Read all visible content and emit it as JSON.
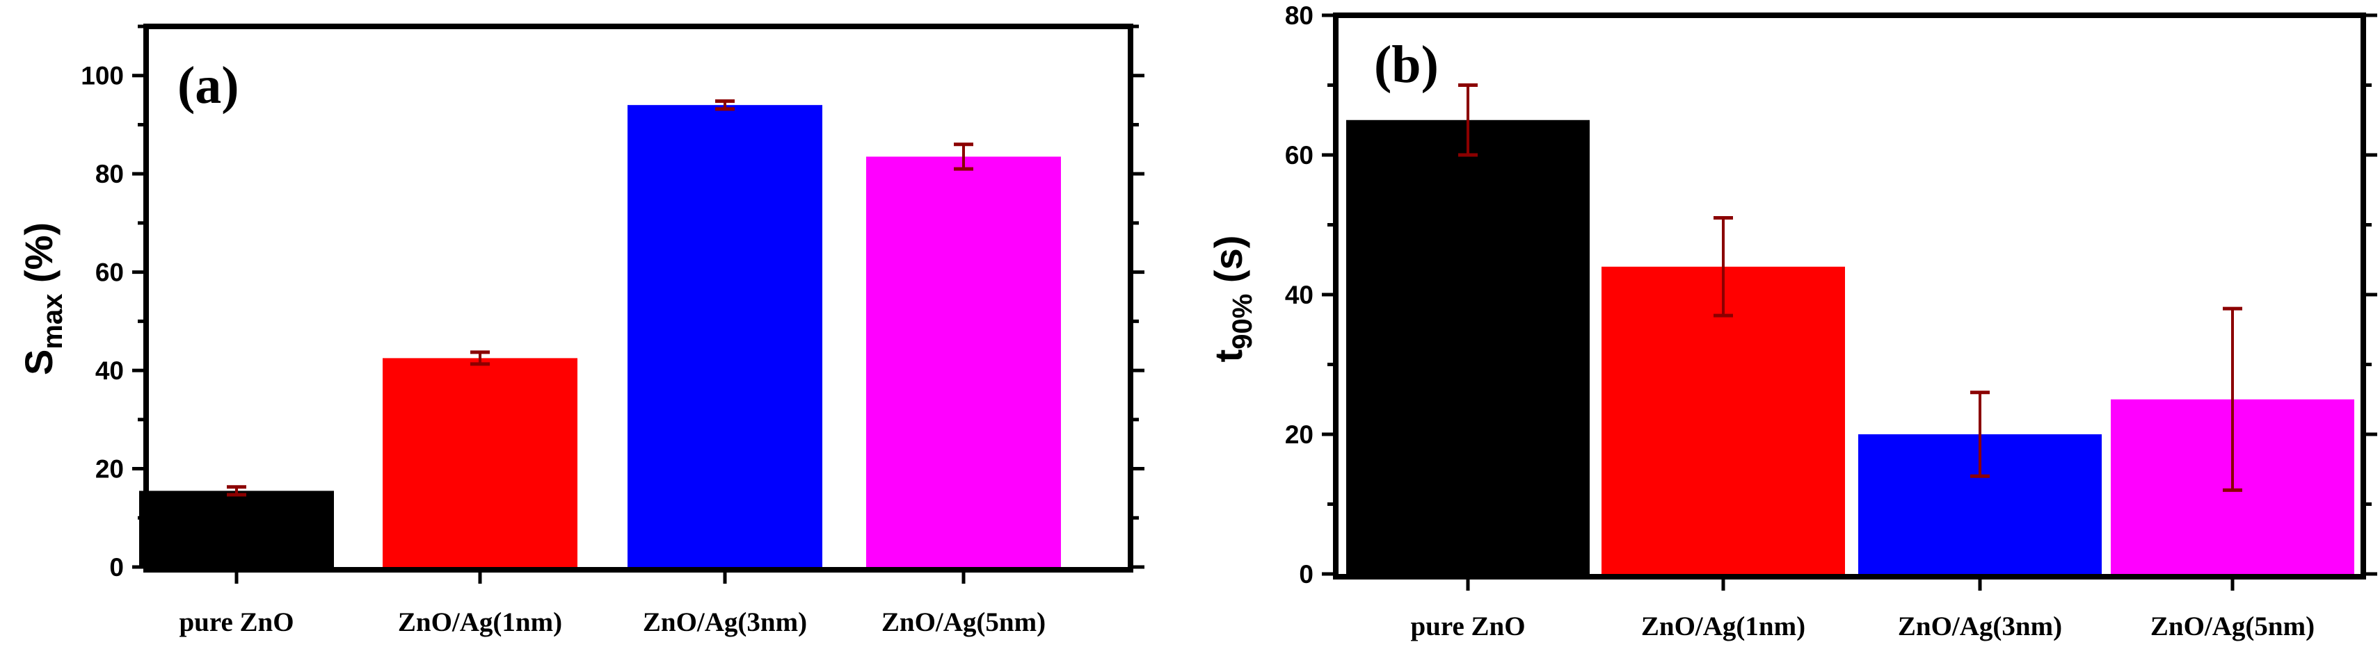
{
  "error_bar_color": "#8b0000",
  "chart_data": [
    {
      "type": "bar",
      "panel_label": "(a)",
      "ylabel_main": "S",
      "ylabel_sub": "max",
      "ylabel_suffix": " (%)",
      "categories": [
        "pure ZnO",
        "ZnO/Ag(1nm)",
        "ZnO/Ag(3nm)",
        "ZnO/Ag(5nm)"
      ],
      "values": [
        15.5,
        42.5,
        94,
        83.5
      ],
      "errors": [
        0.8,
        1.2,
        0.8,
        2.5
      ],
      "colors": [
        "#000000",
        "#ff0000",
        "#0000ff",
        "#ff00ff"
      ],
      "ylim": [
        0,
        110
      ],
      "yticks": [
        0,
        20,
        40,
        60,
        80,
        100
      ],
      "ytick_labels": [
        "0",
        "20",
        "40",
        "60",
        "80",
        "100"
      ]
    },
    {
      "type": "bar",
      "panel_label": "(b)",
      "ylabel_main": "t",
      "ylabel_sub": "90%",
      "ylabel_suffix": " (s)",
      "categories": [
        "pure ZnO",
        "ZnO/Ag(1nm)",
        "ZnO/Ag(3nm)",
        "ZnO/Ag(5nm)"
      ],
      "values": [
        65,
        44,
        20,
        25
      ],
      "errors": [
        5,
        7,
        6,
        13
      ],
      "colors": [
        "#000000",
        "#ff0000",
        "#0000ff",
        "#ff00ff"
      ],
      "ylim": [
        0,
        80
      ],
      "yticks": [
        0,
        20,
        40,
        60,
        80
      ],
      "ytick_labels": [
        "0",
        "20",
        "40",
        "60",
        "80"
      ]
    }
  ]
}
